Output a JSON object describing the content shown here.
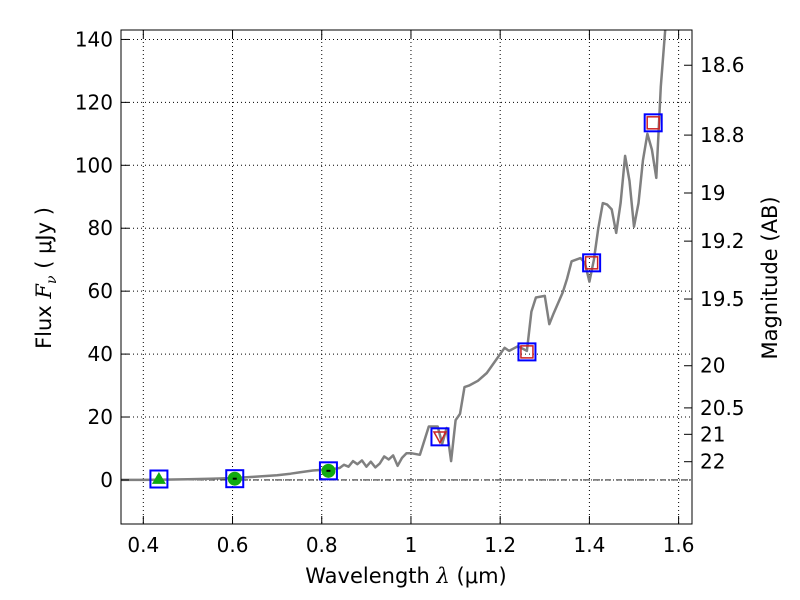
{
  "chart_data": {
    "type": "line",
    "xlabel_text": "Wavelength",
    "xlabel_symbol": "λ",
    "xlabel_unit": "(μm)",
    "ylabel_text": "Flux",
    "ylabel_symbol": "F",
    "ylabel_subscript": "ν",
    "ylabel_unit": "( μJy )",
    "y2label": "Magnitude (AB)",
    "xlim": [
      0.35,
      1.63
    ],
    "ylim": [
      -14,
      143
    ],
    "grid": true,
    "x_ticks": [
      0.4,
      0.6,
      0.8,
      1.0,
      1.2,
      1.4,
      1.6
    ],
    "x_tick_labels": [
      "0.4",
      "0.6",
      "0.8",
      "1",
      "1.2",
      "1.4",
      "1.6"
    ],
    "y_ticks": [
      0,
      20,
      40,
      60,
      80,
      100,
      120,
      140
    ],
    "y_tick_labels": [
      "0",
      "20",
      "40",
      "60",
      "80",
      "100",
      "120",
      "140"
    ],
    "y2_ticks": [
      {
        "label": "18.6",
        "flux": 131.8
      },
      {
        "label": "18.8",
        "flux": 109.6
      },
      {
        "label": "19",
        "flux": 91.2
      },
      {
        "label": "19.2",
        "flux": 75.9
      },
      {
        "label": "19.5",
        "flux": 57.5
      },
      {
        "label": "20",
        "flux": 36.3
      },
      {
        "label": "20.5",
        "flux": 22.9
      },
      {
        "label": "21",
        "flux": 14.5
      },
      {
        "label": "22",
        "flux": 5.8
      }
    ],
    "series": [
      {
        "kind": "spectrum",
        "color": "#808080",
        "x": [
          0.35,
          0.4,
          0.45,
          0.5,
          0.55,
          0.6,
          0.65,
          0.7,
          0.73,
          0.75,
          0.78,
          0.8,
          0.82,
          0.84,
          0.85,
          0.86,
          0.87,
          0.88,
          0.89,
          0.9,
          0.91,
          0.92,
          0.93,
          0.94,
          0.95,
          0.96,
          0.97,
          0.98,
          0.99,
          1.0,
          1.02,
          1.04,
          1.05,
          1.06,
          1.07,
          1.08,
          1.09,
          1.1,
          1.11,
          1.12,
          1.13,
          1.15,
          1.17,
          1.19,
          1.21,
          1.22,
          1.24,
          1.26,
          1.27,
          1.28,
          1.3,
          1.31,
          1.32,
          1.34,
          1.35,
          1.36,
          1.38,
          1.39,
          1.4,
          1.41,
          1.42,
          1.43,
          1.44,
          1.45,
          1.46,
          1.47,
          1.48,
          1.49,
          1.5,
          1.51,
          1.52,
          1.53,
          1.54,
          1.55,
          1.56,
          1.57
        ],
        "y": [
          0.0,
          0.0,
          0.1,
          0.2,
          0.4,
          0.6,
          1.0,
          1.5,
          2.0,
          2.4,
          3.0,
          3.2,
          3.4,
          3.8,
          4.8,
          4.2,
          6.0,
          5.0,
          6.2,
          4.2,
          5.8,
          4.0,
          5.2,
          7.5,
          6.5,
          7.8,
          4.5,
          7.0,
          8.5,
          8.5,
          8.0,
          17.0,
          17.0,
          17.0,
          11.5,
          16.5,
          6.0,
          19.0,
          21.0,
          29.5,
          30.0,
          31.5,
          34.0,
          38.0,
          42.0,
          41.0,
          42.5,
          41.0,
          53.5,
          58.0,
          58.5,
          49.5,
          53.0,
          59.5,
          64.0,
          69.5,
          70.5,
          69.0,
          63.0,
          70.0,
          80.0,
          88.0,
          87.5,
          86.0,
          78.5,
          88.0,
          103.0,
          95.0,
          80.5,
          88.0,
          101.5,
          110.0,
          105.0,
          96.0,
          125.0,
          143.0
        ]
      },
      {
        "kind": "photometry",
        "points": [
          {
            "x": 0.435,
            "y": 0.3,
            "marker": "triangle",
            "color": "#11aa11",
            "box": "#0000ff"
          },
          {
            "x": 0.605,
            "y": 0.4,
            "marker": "circle",
            "color": "#11aa11",
            "box": "#0000ff"
          },
          {
            "x": 0.815,
            "y": 2.9,
            "marker": "circle",
            "color": "#11aa11",
            "box": "#0000ff"
          },
          {
            "x": 1.065,
            "y": 13.7,
            "marker": "triangle-down",
            "color": "#cc2222",
            "box": "#0000ff"
          },
          {
            "x": 1.26,
            "y": 40.7,
            "marker": "square",
            "color": "#cc2222",
            "box": "#0000ff"
          },
          {
            "x": 1.405,
            "y": 69.0,
            "marker": "square",
            "color": "#cc2222",
            "box": "#0000ff"
          },
          {
            "x": 1.543,
            "y": 113.5,
            "marker": "square",
            "color": "#cc2222",
            "box": "#0000ff"
          }
        ]
      }
    ],
    "colors": {
      "axis": "#000000",
      "grid": "#000000",
      "zero_line": "#000000"
    }
  }
}
